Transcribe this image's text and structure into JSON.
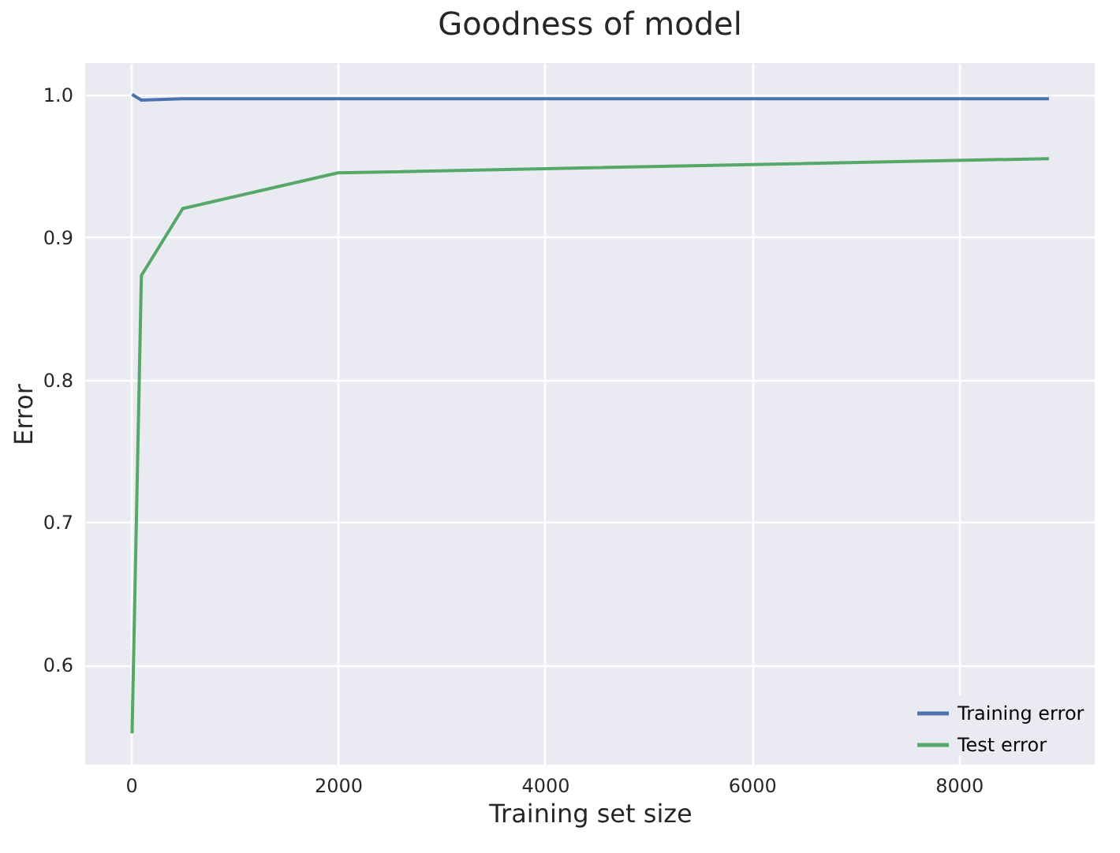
{
  "chart_data": {
    "type": "line",
    "title": "Goodness of model",
    "xlabel": "Training set size",
    "ylabel": "Error",
    "x": [
      10,
      100,
      500,
      2000,
      8870
    ],
    "series": [
      {
        "name": "Training error",
        "color": "#4c72b0",
        "values": [
          1.0,
          0.996,
          0.997,
          0.997,
          0.997
        ]
      },
      {
        "name": "Test error",
        "color": "#55a868",
        "values": [
          0.552,
          0.873,
          0.92,
          0.945,
          0.955
        ]
      }
    ],
    "xlim": [
      -443,
      9313
    ],
    "xticks": [
      0,
      2000,
      4000,
      6000,
      8000
    ],
    "ylim": [
      0.53,
      1.022
    ],
    "yticks": [
      0.6,
      0.7,
      0.8,
      0.9,
      {
        "value": 1.0,
        "label": "1.0"
      }
    ],
    "grid": true,
    "legend": "bottom right",
    "marker": "none",
    "line_style": "solid"
  }
}
